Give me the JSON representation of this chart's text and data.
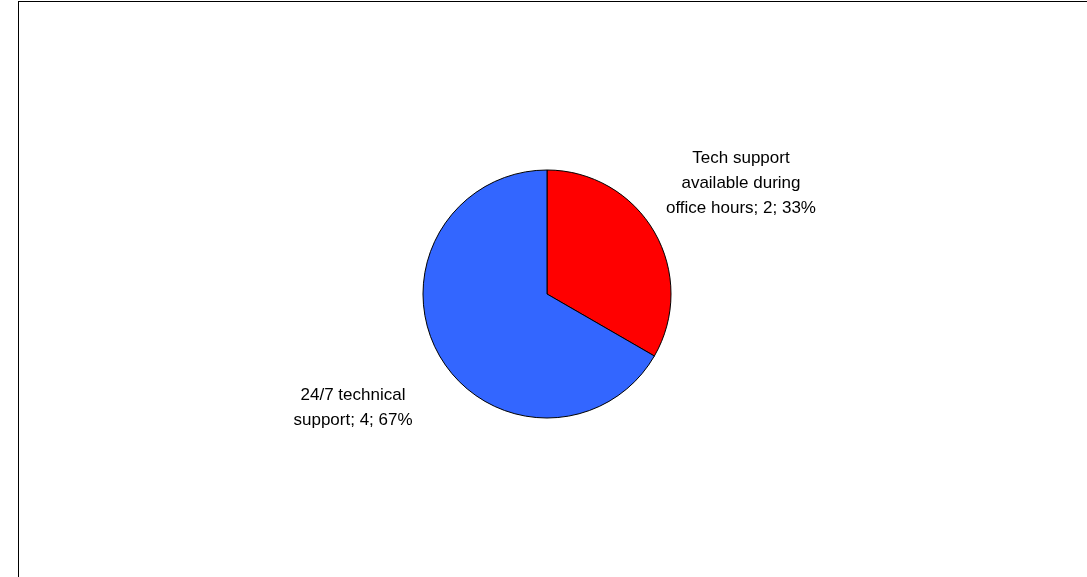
{
  "chart_data": {
    "type": "pie",
    "categories": [
      "Tech support available during office hours",
      "24/7 technical support"
    ],
    "values": [
      2,
      4
    ],
    "value_labels": [
      "2; 33%",
      "4; 67%"
    ],
    "colors": [
      "#ff0000",
      "#3366ff"
    ]
  }
}
